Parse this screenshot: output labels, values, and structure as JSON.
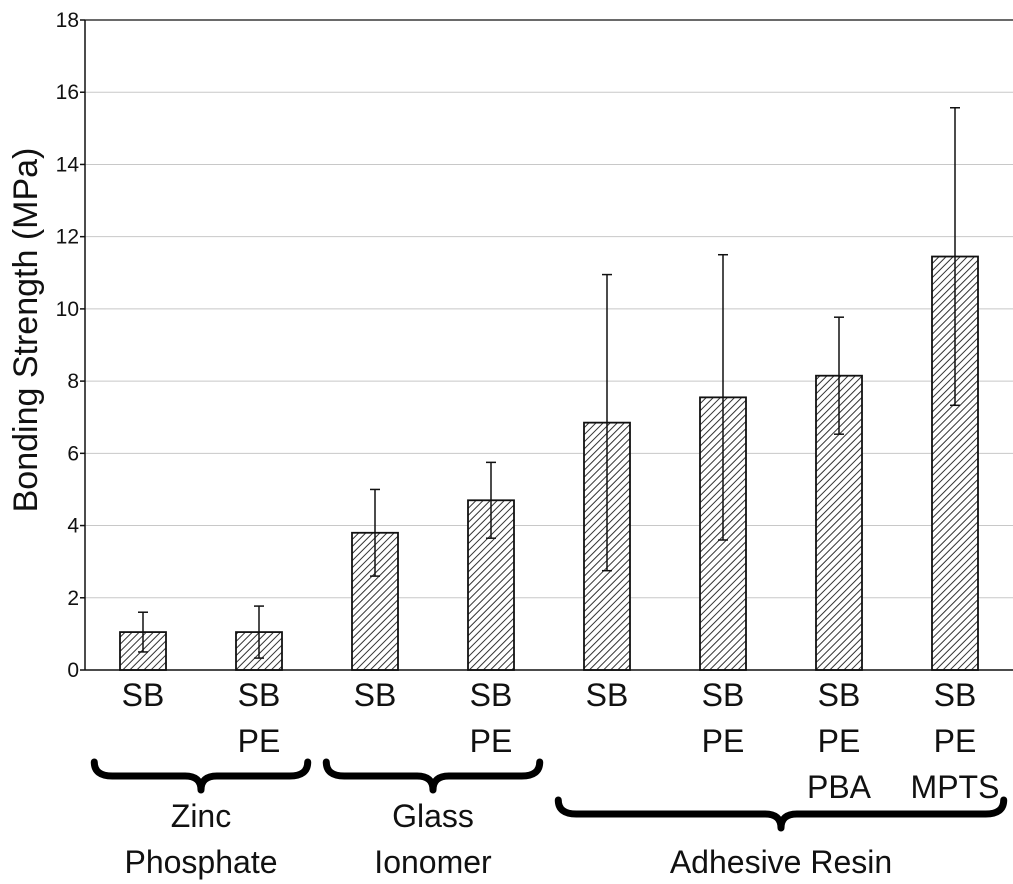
{
  "chart_data": {
    "type": "bar",
    "title": "",
    "xlabel": "",
    "ylabel": "Bonding Strength (MPa)",
    "ylim": [
      0,
      18
    ],
    "yticks": [
      "0",
      "2",
      "4",
      "6",
      "8",
      "10",
      "12",
      "14",
      "16",
      "18"
    ],
    "grid": "horizontal",
    "categories": [
      [
        "SB"
      ],
      [
        "SB",
        "PE"
      ],
      [
        "SB"
      ],
      [
        "SB",
        "PE"
      ],
      [
        "SB"
      ],
      [
        "SB",
        "PE"
      ],
      [
        "SB",
        "PE",
        "PBA"
      ],
      [
        "SB",
        "PE",
        "MPTS"
      ]
    ],
    "values": [
      1.05,
      1.05,
      3.8,
      4.7,
      6.85,
      7.55,
      8.15,
      11.45
    ],
    "error": [
      0.55,
      0.72,
      1.2,
      1.05,
      4.1,
      3.95,
      1.62,
      4.12
    ],
    "groups": [
      {
        "label": [
          "Zinc",
          "Phosphate"
        ],
        "bars": [
          0,
          1
        ]
      },
      {
        "label": [
          "Glass",
          "Ionomer"
        ],
        "bars": [
          2,
          3
        ]
      },
      {
        "label": [
          "Adhesive Resin"
        ],
        "bars": [
          4,
          5,
          6,
          7
        ]
      }
    ],
    "bar_fill": "diagonal-hatch",
    "colors": {
      "bar_edge": "#111111",
      "hatch": "#333333",
      "grid": "#c8c8c8",
      "axis": "#111111"
    }
  }
}
